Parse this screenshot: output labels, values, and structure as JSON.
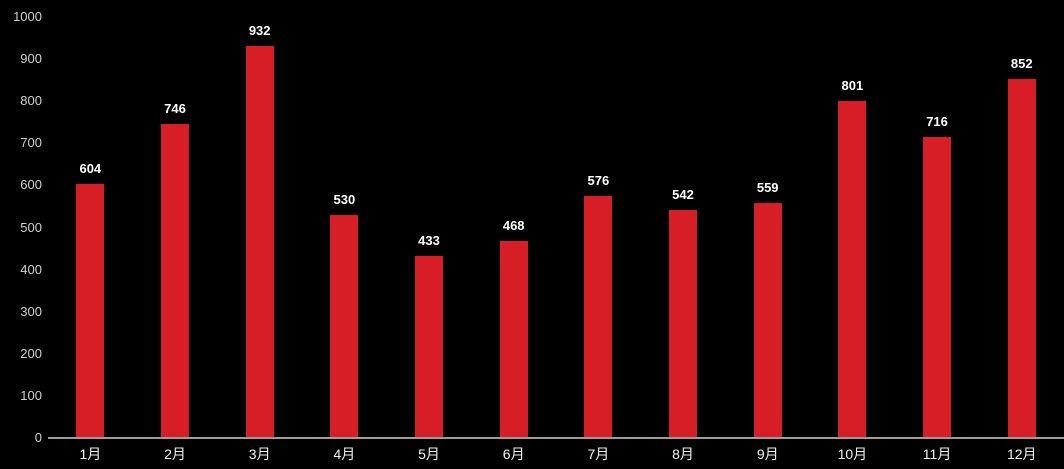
{
  "chart_data": {
    "type": "bar",
    "title": "",
    "xlabel": "",
    "ylabel": "",
    "categories": [
      "1月",
      "2月",
      "3月",
      "4月",
      "5月",
      "6月",
      "7月",
      "8月",
      "9月",
      "10月",
      "11月",
      "12月"
    ],
    "values": [
      604,
      746,
      932,
      530,
      433,
      468,
      576,
      542,
      559,
      801,
      716,
      852
    ],
    "ylim": [
      0,
      1000
    ],
    "y_ticks": [
      0,
      100,
      200,
      300,
      400,
      500,
      600,
      700,
      800,
      900,
      1000
    ],
    "grid": false,
    "legend": false,
    "data_labels_shown": true,
    "colors": {
      "background": "#000000",
      "bar": "#d71e26",
      "axis_line": "#9c9c9c",
      "data_label_text": "#ffffff",
      "x_tick_text": "#f2f2f2",
      "y_tick_text": "#d0d0d0"
    }
  }
}
